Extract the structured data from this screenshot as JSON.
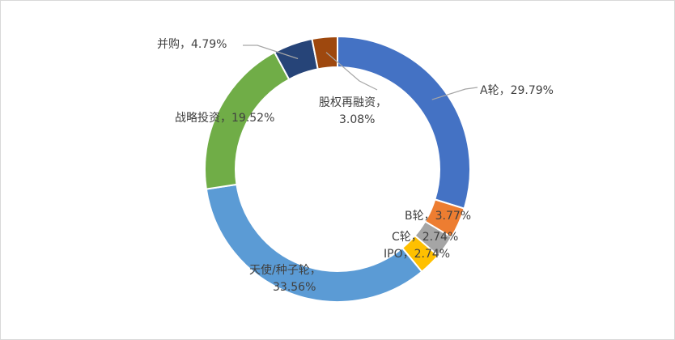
{
  "chart_data": {
    "type": "pie",
    "donut": true,
    "title": "",
    "slices": [
      {
        "name": "A轮",
        "value": 29.79,
        "label": "A轮，29.79%",
        "color": "#4472c4"
      },
      {
        "name": "B轮",
        "value": 3.77,
        "label": "B轮，3.77%",
        "color": "#ed7d31"
      },
      {
        "name": "C轮",
        "value": 2.74,
        "label": "C轮，2.74%",
        "color": "#a5a5a5"
      },
      {
        "name": "IPO",
        "value": 2.74,
        "label": "IPO，2.74%",
        "color": "#ffc000"
      },
      {
        "name": "天使/种子轮",
        "value": 33.56,
        "label_line1": "天使/种子轮，",
        "label_line2": "33.56%",
        "color": "#5b9bd5"
      },
      {
        "name": "战略投资",
        "value": 19.52,
        "label": "战略投资，19.52%",
        "color": "#70ad47"
      },
      {
        "name": "并购",
        "value": 4.79,
        "label": "并购，4.79%",
        "color": "#264478"
      },
      {
        "name": "股权再融资",
        "value": 3.08,
        "label_line1": "股权再融资，",
        "label_line2": "3.08%",
        "color": "#9e480e"
      }
    ]
  }
}
